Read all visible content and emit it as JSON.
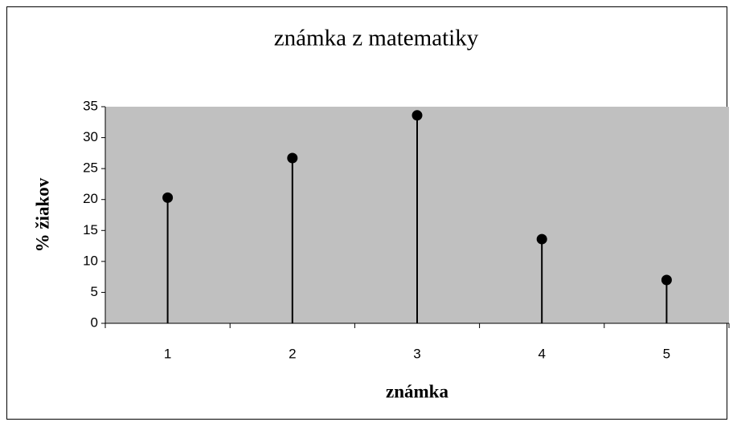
{
  "chart_data": {
    "type": "stem",
    "title": "známka z matematiky",
    "x_label": "známka",
    "y_label": "% žiakov",
    "categories": [
      "1",
      "2",
      "3",
      "4",
      "5"
    ],
    "values": [
      20.3,
      26.7,
      33.6,
      13.6,
      7.0
    ],
    "color": "#000000",
    "plot_background": "#c0c0c0",
    "ylim": [
      0,
      35
    ],
    "yticks": [
      0,
      5,
      10,
      15,
      20,
      25,
      30,
      35
    ]
  }
}
